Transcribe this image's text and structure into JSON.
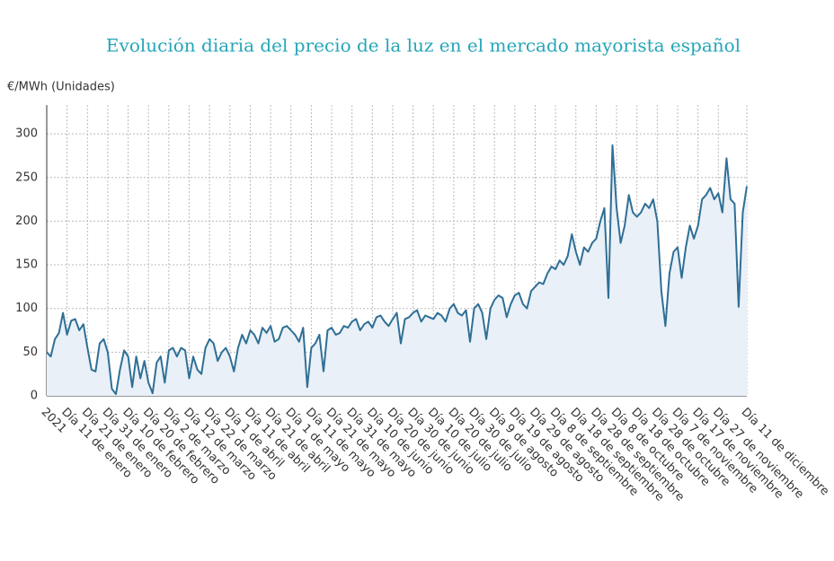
{
  "chart_data": {
    "type": "line",
    "title": "Evolución diaria del precio de la luz en el mercado mayorista español",
    "y_label": "€/MWh (Unidades)",
    "categories": [
      "2021",
      null,
      null,
      null,
      null,
      "Día 11 de enero",
      null,
      null,
      null,
      null,
      "Día 21 de enero",
      null,
      null,
      null,
      null,
      "Día 31 de enero",
      null,
      null,
      null,
      null,
      "Día 10 de febrero",
      null,
      null,
      null,
      null,
      "Día 20 de febrero",
      null,
      null,
      null,
      null,
      "Día 2 de marzo",
      null,
      null,
      null,
      null,
      "Día 12 de marzo",
      null,
      null,
      null,
      null,
      "Día 22 de marzo",
      null,
      null,
      null,
      null,
      "Día 1 de abril",
      null,
      null,
      null,
      null,
      "Día 11 de abril",
      null,
      null,
      null,
      null,
      "Día 21 de abril",
      null,
      null,
      null,
      null,
      "Día 1 de mayo",
      null,
      null,
      null,
      null,
      "Día 11 de mayo",
      null,
      null,
      null,
      null,
      "Día 21 de mayo",
      null,
      null,
      null,
      null,
      "Día 31 de mayo",
      null,
      null,
      null,
      null,
      "Día 10 de junio",
      null,
      null,
      null,
      null,
      "Día 20 de junio",
      null,
      null,
      null,
      null,
      "Día 30 de junio",
      null,
      null,
      null,
      null,
      "Día 10 de julio",
      null,
      null,
      null,
      null,
      "Día 20 de julio",
      null,
      null,
      null,
      null,
      "Día 30 de julio",
      null,
      null,
      null,
      null,
      "Día 9 de agosto",
      null,
      null,
      null,
      null,
      "Día 19 de agosto",
      null,
      null,
      null,
      null,
      "Día 29 de agosto",
      null,
      null,
      null,
      null,
      "Día 8 de septiembre",
      null,
      null,
      null,
      null,
      "Día 18 de septiembre",
      null,
      null,
      null,
      null,
      "Día 28 de septiembre",
      null,
      null,
      null,
      null,
      "Día 8 de octubre",
      null,
      null,
      null,
      null,
      "Día 18 de octubre",
      null,
      null,
      null,
      null,
      "Día 28 de octubre",
      null,
      null,
      null,
      null,
      "Día 7 de noviembre",
      null,
      null,
      null,
      null,
      "Día 17 de noviembre",
      null,
      null,
      null,
      null,
      "Día 27 de noviembre",
      null,
      null,
      null,
      null,
      null,
      null,
      "Día 11 de diciembre"
    ],
    "values": [
      50,
      45,
      65,
      72,
      95,
      70,
      86,
      88,
      75,
      82,
      55,
      30,
      28,
      60,
      65,
      50,
      8,
      2,
      30,
      52,
      45,
      10,
      45,
      20,
      40,
      15,
      3,
      38,
      45,
      15,
      52,
      55,
      45,
      55,
      52,
      20,
      45,
      30,
      25,
      55,
      65,
      60,
      40,
      50,
      55,
      45,
      28,
      55,
      70,
      60,
      75,
      70,
      60,
      78,
      72,
      80,
      62,
      65,
      78,
      80,
      75,
      70,
      62,
      78,
      10,
      55,
      60,
      70,
      28,
      75,
      78,
      70,
      72,
      80,
      78,
      85,
      88,
      75,
      82,
      85,
      78,
      90,
      92,
      85,
      80,
      88,
      95,
      60,
      88,
      90,
      95,
      98,
      85,
      92,
      90,
      88,
      95,
      92,
      85,
      100,
      105,
      95,
      92,
      98,
      62,
      100,
      105,
      95,
      65,
      100,
      110,
      115,
      112,
      90,
      105,
      115,
      118,
      105,
      100,
      120,
      125,
      130,
      128,
      140,
      148,
      145,
      155,
      150,
      160,
      185,
      165,
      150,
      170,
      165,
      175,
      180,
      200,
      215,
      112,
      287,
      215,
      175,
      195,
      230,
      210,
      205,
      210,
      220,
      215,
      225,
      200,
      120,
      80,
      140,
      165,
      170,
      135,
      170,
      195,
      180,
      195,
      225,
      230,
      238,
      225,
      232,
      210,
      272,
      225,
      220,
      102,
      210,
      240
    ],
    "color": "#2f6f96",
    "fill": "#e9f0f7",
    "ylim": [
      0,
      333
    ],
    "yticks": [
      0,
      50,
      100,
      150,
      200,
      250,
      300
    ],
    "grid": true
  }
}
